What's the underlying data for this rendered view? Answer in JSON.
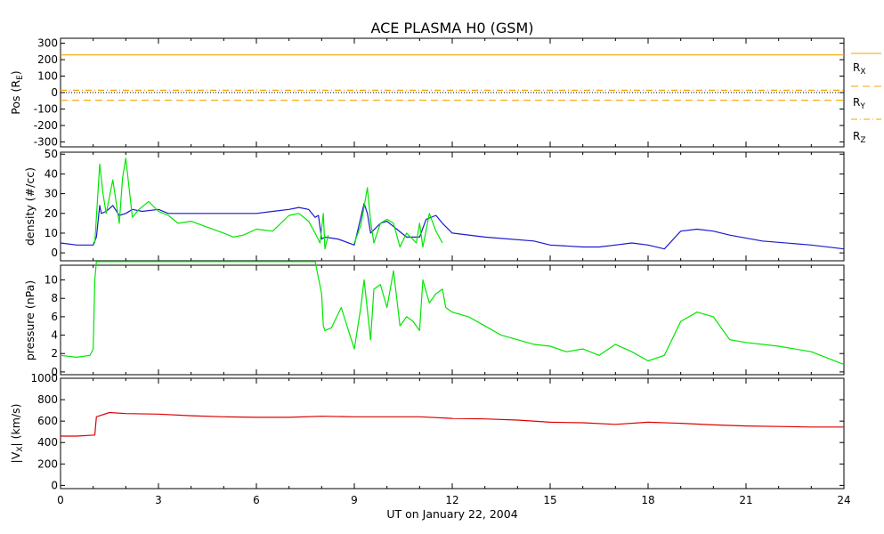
{
  "title": "ACE PLASMA H0 (GSM)",
  "xlabel": "UT on January 22, 2004",
  "x_ticks": [
    "0",
    "3",
    "6",
    "9",
    "12",
    "15",
    "18",
    "21",
    "24"
  ],
  "colors": {
    "rx_line": "#f5a300",
    "ry_line": "#f5a300",
    "rz_line": "#f5a300",
    "zero_line": "#000000",
    "density_blue": "#1a1acc",
    "density_green": "#00e600",
    "pressure": "#00e600",
    "vx": "#dd0000"
  },
  "chart_data": [
    {
      "type": "line",
      "panel": "position",
      "ylabel_parts": {
        "main": "Pos (R",
        "sub": "E",
        "end": ")"
      },
      "ylim": [
        -330,
        330
      ],
      "y_ticks": [
        "300",
        "200",
        "100",
        "0",
        "-100",
        "-200",
        "-300"
      ],
      "legend": [
        {
          "main": "R",
          "sub": "X"
        },
        {
          "main": "R",
          "sub": "Y"
        },
        {
          "main": "R",
          "sub": "Z"
        }
      ],
      "series": [
        {
          "name": "RX",
          "style": "solid",
          "x": [
            0,
            24
          ],
          "values": [
            229,
            229
          ]
        },
        {
          "name": "RY",
          "style": "dashed",
          "x": [
            0,
            24
          ],
          "values": [
            -47,
            -47
          ]
        },
        {
          "name": "RZ",
          "style": "dashdot",
          "x": [
            0,
            24
          ],
          "values": [
            14,
            14
          ]
        }
      ]
    },
    {
      "type": "line",
      "panel": "density",
      "ylabel": "density (#/cc)",
      "ylim": [
        -4,
        51
      ],
      "y_ticks": [
        "50",
        "40",
        "30",
        "20",
        "10",
        "0"
      ],
      "series": [
        {
          "color_key": "density_blue",
          "x": [
            0,
            0.5,
            1.0,
            1.1,
            1.2,
            1.25,
            1.4,
            1.6,
            1.8,
            2.0,
            2.2,
            2.5,
            3.0,
            3.3,
            3.6,
            4.0,
            5.0,
            6.0,
            6.5,
            7.0,
            7.3,
            7.6,
            7.8,
            7.9,
            8.0,
            8.1,
            8.5,
            9.0,
            9.3,
            9.4,
            9.5,
            9.8,
            10.0,
            10.3,
            10.6,
            11.0,
            11.2,
            11.5,
            11.7,
            12.0,
            13.0,
            14.5,
            15.0,
            16.0,
            16.5,
            17.0,
            17.5,
            18.0,
            18.5,
            19.0,
            19.5,
            20.0,
            20.5,
            21.5,
            23.0,
            24.0
          ],
          "values": [
            5,
            4,
            4,
            8,
            24,
            20,
            21,
            24,
            19,
            20,
            22,
            21,
            22,
            20,
            20,
            20,
            20,
            20,
            21,
            22,
            23,
            22,
            18,
            19,
            7,
            8,
            7,
            4,
            25,
            20,
            10,
            15,
            16,
            12,
            8,
            8,
            17,
            19,
            15,
            10,
            8,
            6,
            4,
            3,
            3,
            4,
            5,
            4,
            2,
            11,
            12,
            11,
            9,
            6,
            4,
            2
          ]
        },
        {
          "color_key": "density_green",
          "x": [
            1.05,
            1.2,
            1.3,
            1.4,
            1.6,
            1.8,
            1.9,
            2.0,
            2.2,
            2.4,
            2.7,
            3.0,
            3.3,
            3.6,
            4.0,
            4.5,
            5.0,
            5.3,
            5.6,
            6.0,
            6.5,
            7.0,
            7.3,
            7.6,
            7.8,
            7.95,
            8.05,
            8.1,
            8.2
          ],
          "values": [
            5,
            45,
            30,
            20,
            37,
            15,
            38,
            48,
            18,
            22,
            26,
            21,
            19,
            15,
            16,
            13,
            10,
            8,
            9,
            12,
            11,
            19,
            20,
            16,
            10,
            5,
            20,
            2,
            9
          ]
        },
        {
          "color_key": "density_green",
          "x": [
            9.0,
            9.2,
            9.4,
            9.5,
            9.6,
            9.8,
            10.0,
            10.2,
            10.4,
            10.6,
            10.9,
            11.0,
            11.1,
            11.3,
            11.5,
            11.7
          ],
          "values": [
            5,
            14,
            33,
            16,
            5,
            15,
            17,
            15,
            3,
            10,
            5,
            15,
            3,
            20,
            11,
            5
          ]
        }
      ]
    },
    {
      "type": "line",
      "panel": "pressure",
      "ylabel": "pressure (nPa)",
      "ylim": [
        -0.3,
        11.6
      ],
      "y_ticks": [
        "10",
        "8",
        "6",
        "4",
        "2",
        "0"
      ],
      "series": [
        {
          "color_key": "pressure",
          "x": [
            0,
            0.5,
            0.9,
            1.0,
            1.05,
            1.1,
            1.2,
            1.5,
            2.0,
            2.5,
            3.0,
            3.5,
            4.0,
            5.0,
            6.0,
            7.0,
            7.5,
            7.8,
            8.0,
            8.05,
            8.1,
            8.3,
            8.6,
            9.0,
            9.2,
            9.3,
            9.5,
            9.6,
            9.8,
            10.0,
            10.2,
            10.4,
            10.6,
            10.8,
            11.0,
            11.1,
            11.3,
            11.5,
            11.7,
            11.8,
            12.0,
            12.5,
            13.0,
            13.5,
            14.0,
            14.5,
            15.0,
            15.5,
            16.0,
            16.5,
            17.0,
            17.5,
            18.0,
            18.5,
            19.0,
            19.5,
            20.0,
            20.5,
            21.0,
            22.0,
            23.0,
            24.0
          ],
          "values": [
            1.8,
            1.6,
            1.8,
            2.5,
            10,
            12,
            12,
            12,
            12,
            12,
            12,
            12,
            12,
            12,
            12,
            12,
            12,
            12,
            8.5,
            5,
            4.5,
            4.8,
            7,
            2.5,
            7,
            10,
            3.5,
            9,
            9.5,
            7,
            11,
            5,
            6,
            5.5,
            4.5,
            10,
            7.5,
            8.5,
            9,
            7,
            6.5,
            6,
            5,
            4,
            3.5,
            3,
            2.8,
            2.2,
            2.5,
            1.8,
            3.0,
            2.2,
            1.2,
            1.8,
            5.5,
            6.5,
            6,
            3.5,
            3.2,
            2.8,
            2.2,
            0.8
          ]
        }
      ]
    },
    {
      "type": "line",
      "panel": "vx",
      "ylabel_parts": {
        "pre": "|V",
        "sub": "X",
        "end": "| (km/s)"
      },
      "ylim": [
        -30,
        1000
      ],
      "y_ticks": [
        "1000",
        "800",
        "600",
        "400",
        "200",
        "0"
      ],
      "series": [
        {
          "color_key": "vx",
          "x": [
            0,
            0.5,
            1.05,
            1.1,
            1.5,
            2.0,
            3.0,
            4.0,
            5.0,
            6.0,
            7.0,
            8.0,
            9.0,
            10.0,
            11.0,
            12.0,
            13.0,
            14.0,
            15.0,
            16.0,
            17.0,
            18.0,
            19.0,
            20.0,
            21.0,
            22.0,
            23.0,
            24.0
          ],
          "values": [
            460,
            460,
            470,
            640,
            680,
            670,
            665,
            650,
            640,
            635,
            635,
            645,
            640,
            640,
            640,
            625,
            620,
            610,
            590,
            585,
            570,
            590,
            580,
            565,
            555,
            550,
            545,
            545
          ]
        }
      ]
    }
  ]
}
